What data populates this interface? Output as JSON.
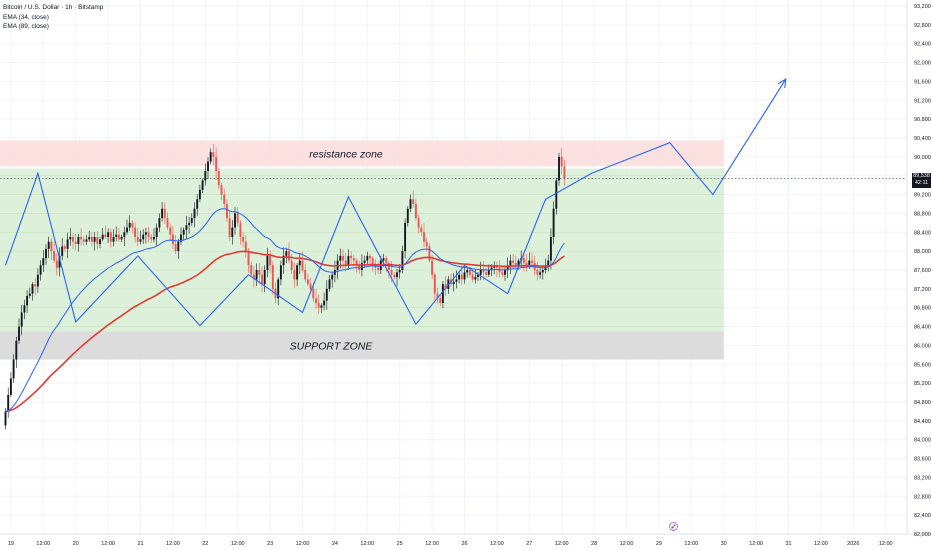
{
  "legend": {
    "symbol": "Bitcoin / U.S. Dollar · 1h · Bitstamp",
    "ema1": "EMA (34, close)",
    "ema2": "EMA (89, close)"
  },
  "price_tag": {
    "price": "89,538",
    "countdown": "42:11"
  },
  "colors": {
    "up": "#131722",
    "down": "#ef5350",
    "ema34": "#2962ff",
    "ema89": "#e53935",
    "zigzag": "#2962ff",
    "resistance_fill": "#fbdcdc",
    "range_fill": "#d7eed3",
    "support_fill": "#d6d6d6"
  },
  "chart_data": {
    "type": "candlestick",
    "title": "Bitcoin / U.S. Dollar · 1h · Bitstamp",
    "ylim": [
      82000,
      93200
    ],
    "y_ticks": [
      "82,000",
      "82,400",
      "82,800",
      "83,200",
      "83,600",
      "84,000",
      "84,400",
      "84,800",
      "85,200",
      "85,600",
      "86,000",
      "86,400",
      "86,800",
      "87,200",
      "87,600",
      "88,000",
      "88,400",
      "88,800",
      "89,200",
      "89,600",
      "90,000",
      "90,400",
      "90,800",
      "91,200",
      "91,600",
      "92,000",
      "92,400",
      "92,800",
      "93,200"
    ],
    "x_ticks": [
      {
        "label": "19",
        "t": 2
      },
      {
        "label": "12:00",
        "t": 14
      },
      {
        "label": "20",
        "t": 26
      },
      {
        "label": "12:00",
        "t": 38
      },
      {
        "label": "21",
        "t": 50
      },
      {
        "label": "12:00",
        "t": 62
      },
      {
        "label": "22",
        "t": 74
      },
      {
        "label": "12:00",
        "t": 86
      },
      {
        "label": "23",
        "t": 98
      },
      {
        "label": "12:00",
        "t": 110
      },
      {
        "label": "24",
        "t": 122
      },
      {
        "label": "12:00",
        "t": 134
      },
      {
        "label": "25",
        "t": 146
      },
      {
        "label": "12:00",
        "t": 158
      },
      {
        "label": "26",
        "t": 170
      },
      {
        "label": "12:00",
        "t": 182
      },
      {
        "label": "27",
        "t": 194
      },
      {
        "label": "12:00",
        "t": 206
      },
      {
        "label": "28",
        "t": 218
      },
      {
        "label": "12:00",
        "t": 230
      },
      {
        "label": "29",
        "t": 242
      },
      {
        "label": "12:00",
        "t": 254
      },
      {
        "label": "30",
        "t": 266
      },
      {
        "label": "12:00",
        "t": 278
      },
      {
        "label": "31",
        "t": 290
      },
      {
        "label": "12:00",
        "t": 302
      },
      {
        "label": "2026",
        "t": 314
      },
      {
        "label": "12:00",
        "t": 326
      }
    ],
    "zones": [
      {
        "name": "resistance zone",
        "y0": 89800,
        "y1": 90350
      },
      {
        "name": "range",
        "y0": 86300,
        "y1": 89750
      },
      {
        "name": "SUPPORT ZONE",
        "y0": 85700,
        "y1": 86300
      }
    ],
    "zone_end_t": 266,
    "closes": [
      84600,
      84950,
      85300,
      85700,
      86100,
      86400,
      86700,
      86850,
      87050,
      87100,
      87300,
      87250,
      87500,
      87700,
      87850,
      88050,
      88200,
      88000,
      87800,
      87650,
      87900,
      88100,
      88050,
      88250,
      88300,
      88200,
      88150,
      88300,
      88250,
      88200,
      88250,
      88300,
      88200,
      88300,
      88150,
      88250,
      88350,
      88300,
      88400,
      88200,
      88300,
      88350,
      88250,
      88300,
      88400,
      88500,
      88600,
      88500,
      88300,
      88200,
      88250,
      88350,
      88400,
      88300,
      88250,
      88300,
      88500,
      88700,
      88900,
      88700,
      88500,
      88350,
      88150,
      88000,
      88200,
      88350,
      88450,
      88550,
      88600,
      88700,
      88900,
      89100,
      89300,
      89500,
      89700,
      89900,
      90100,
      90000,
      89700,
      89400,
      89200,
      89000,
      88700,
      88300,
      88500,
      88800,
      88600,
      88300,
      88200,
      88000,
      87700,
      87500,
      87400,
      87600,
      87500,
      87300,
      87600,
      87900,
      87700,
      87200,
      87000,
      87400,
      87700,
      87900,
      88000,
      87800,
      87600,
      87400,
      87700,
      87800,
      87600,
      87400,
      87300,
      87200,
      87000,
      86900,
      86800,
      86850,
      86950,
      87200,
      87400,
      87500,
      87600,
      87800,
      87900,
      87800,
      87700,
      87900,
      87850,
      87800,
      87700,
      87600,
      87750,
      87800,
      87900,
      87850,
      87700,
      87650,
      87600,
      87800,
      87850,
      87750,
      87600,
      87500,
      87450,
      87550,
      87600,
      88000,
      88600,
      88900,
      89100,
      89000,
      88700,
      88500,
      88400,
      88200,
      88100,
      87800,
      87500,
      87100,
      87000,
      86900,
      87300,
      87200,
      87400,
      87300,
      87350,
      87400,
      87500,
      87400,
      87550,
      87600,
      87500,
      87400,
      87450,
      87500,
      87600,
      87550,
      87500,
      87600,
      87650,
      87700,
      87650,
      87550,
      87500,
      87600,
      87700,
      87800,
      87750,
      87700,
      87800,
      87850,
      87750,
      87700,
      87800,
      87750,
      87600,
      87500,
      87550,
      87600,
      87700,
      87800,
      88300,
      88900,
      89500,
      90000,
      89800,
      89538
    ],
    "ema34_label": "EMA (34, close)",
    "ema89_label": "EMA (89, close)",
    "zigzag": [
      {
        "t": 0,
        "y": 87700
      },
      {
        "t": 12,
        "y": 89650
      },
      {
        "t": 26,
        "y": 86500
      },
      {
        "t": 49,
        "y": 87900
      },
      {
        "t": 72,
        "y": 86420
      },
      {
        "t": 90,
        "y": 87500
      },
      {
        "t": 110,
        "y": 86700
      },
      {
        "t": 127,
        "y": 89150
      },
      {
        "t": 152,
        "y": 86450
      },
      {
        "t": 170,
        "y": 87700
      },
      {
        "t": 186,
        "y": 87100
      },
      {
        "t": 200,
        "y": 89100
      },
      {
        "t": 217,
        "y": 89650
      },
      {
        "t": 246,
        "y": 90300
      },
      {
        "t": 262,
        "y": 89200
      },
      {
        "t": 289,
        "y": 91650
      }
    ],
    "annotations": [
      "resistance zone",
      "SUPPORT ZONE"
    ]
  }
}
